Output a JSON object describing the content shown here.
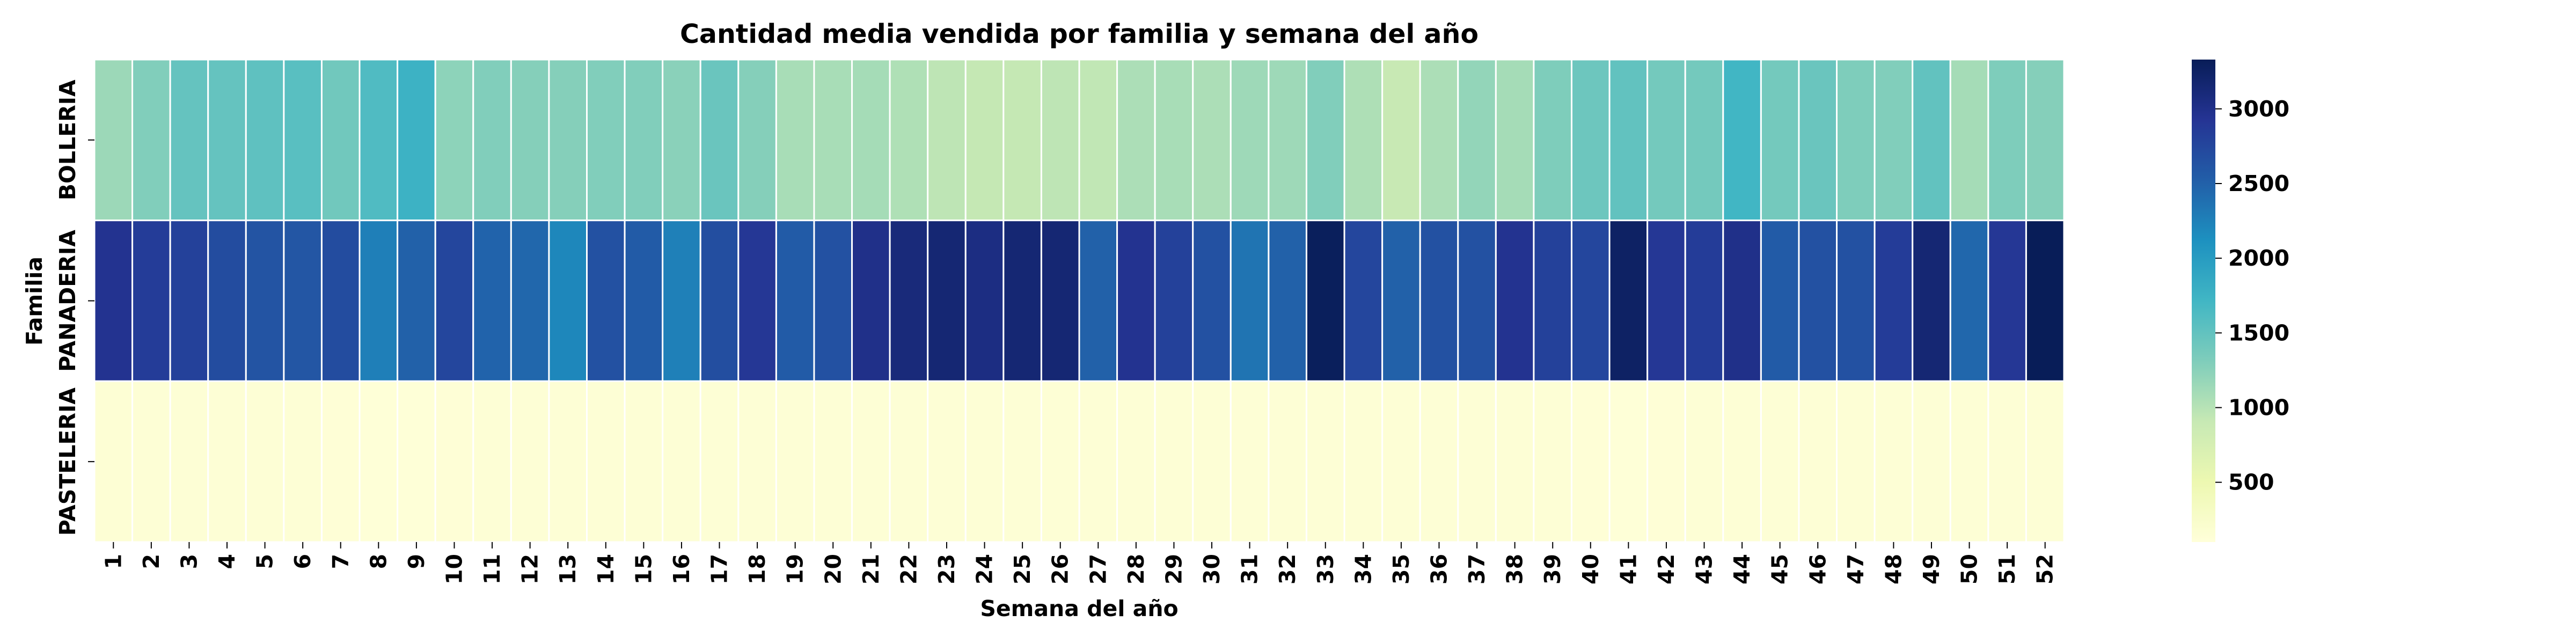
{
  "chart_data": {
    "type": "heatmap",
    "title": "Cantidad media vendida por familia y semana del año",
    "xlabel": "Semana del año",
    "ylabel": "Familia",
    "rows": [
      "BOLLERIA",
      "PANADERIA",
      "PASTELERIA"
    ],
    "columns": [
      "1",
      "2",
      "3",
      "4",
      "5",
      "6",
      "7",
      "8",
      "9",
      "10",
      "11",
      "12",
      "13",
      "14",
      "15",
      "16",
      "17",
      "18",
      "19",
      "20",
      "21",
      "22",
      "23",
      "24",
      "25",
      "26",
      "27",
      "28",
      "29",
      "30",
      "31",
      "32",
      "33",
      "34",
      "35",
      "36",
      "37",
      "38",
      "39",
      "40",
      "41",
      "42",
      "43",
      "44",
      "45",
      "46",
      "47",
      "48",
      "49",
      "50",
      "51",
      "52"
    ],
    "values": [
      [
        1150,
        1300,
        1480,
        1480,
        1520,
        1560,
        1400,
        1620,
        1760,
        1230,
        1300,
        1280,
        1280,
        1300,
        1300,
        1250,
        1450,
        1280,
        1080,
        1080,
        1100,
        1040,
        960,
        920,
        920,
        960,
        940,
        1060,
        1080,
        1060,
        1140,
        1140,
        1300,
        1050,
        900,
        1060,
        1200,
        1100,
        1320,
        1430,
        1500,
        1380,
        1380,
        1720,
        1380,
        1450,
        1320,
        1300,
        1500,
        1100,
        1320,
        1280
      ],
      [
        2950,
        2850,
        2800,
        2700,
        2620,
        2600,
        2700,
        2260,
        2500,
        2750,
        2480,
        2450,
        2200,
        2650,
        2550,
        2250,
        2680,
        2900,
        2550,
        2650,
        3000,
        3100,
        3150,
        3050,
        3150,
        3150,
        2500,
        2950,
        2800,
        2650,
        2350,
        2500,
        3300,
        2750,
        2500,
        2650,
        2650,
        2950,
        2800,
        2750,
        3250,
        2900,
        2850,
        3000,
        2550,
        2650,
        2650,
        2850,
        3150,
        2450,
        2900,
        3330
      ],
      [
        150,
        145,
        145,
        145,
        140,
        140,
        130,
        120,
        120,
        130,
        140,
        140,
        140,
        140,
        140,
        140,
        140,
        140,
        140,
        145,
        145,
        145,
        145,
        145,
        145,
        145,
        145,
        145,
        145,
        145,
        145,
        145,
        145,
        145,
        145,
        145,
        145,
        145,
        145,
        130,
        120,
        130,
        140,
        140,
        140,
        140,
        140,
        140,
        140,
        140,
        140,
        140
      ]
    ],
    "colorbar": {
      "min": 100,
      "max": 3330,
      "ticks": [
        500,
        1000,
        1500,
        2000,
        2500,
        3000
      ],
      "colormap": "YlGnBu"
    },
    "grid": true,
    "legend": "none"
  }
}
